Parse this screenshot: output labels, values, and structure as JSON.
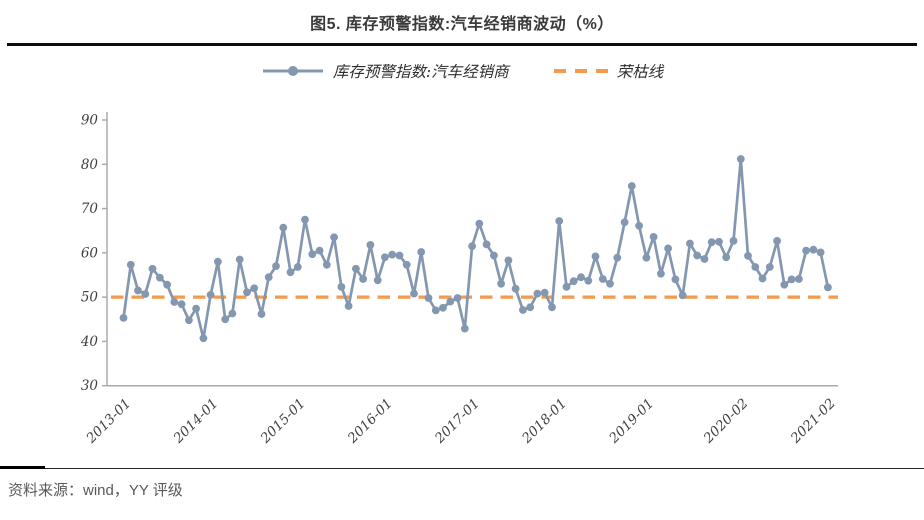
{
  "title": "图5. 库存预警指数:汽车经销商波动（%）",
  "legend": {
    "series_label": "库存预警指数:汽车经销商",
    "breakeven_label": "荣枯线"
  },
  "source": "资料来源：wind，YY 评级",
  "colors": {
    "series": "#8497B0",
    "breakeven": "#F49A4E",
    "axis": "#ABABAB",
    "tick_text": "#404040",
    "title_text": "#3a3a3a"
  },
  "chart_data": {
    "type": "line",
    "title": "图5. 库存预警指数:汽车经销商波动（%）",
    "series_name": "库存预警指数:汽车经销商",
    "breakeven_name": "荣枯线",
    "breakeven_value": 50,
    "ylim": [
      30,
      90
    ],
    "yticks": [
      90,
      80,
      70,
      60,
      50,
      40,
      30
    ],
    "grid": false,
    "legend_position": "top",
    "x_tick_labels": [
      "2013-01",
      "2014-01",
      "2015-01",
      "2016-01",
      "2017-01",
      "2018-01",
      "2019-01",
      "2020-02",
      "2021-02"
    ],
    "x_tick_indexes": [
      0,
      12,
      24,
      36,
      48,
      60,
      72,
      85,
      97
    ],
    "x": [
      "2013-01",
      "2013-02",
      "2013-03",
      "2013-04",
      "2013-05",
      "2013-06",
      "2013-07",
      "2013-08",
      "2013-09",
      "2013-10",
      "2013-11",
      "2013-12",
      "2014-01",
      "2014-02",
      "2014-03",
      "2014-04",
      "2014-05",
      "2014-06",
      "2014-07",
      "2014-08",
      "2014-09",
      "2014-10",
      "2014-11",
      "2014-12",
      "2015-01",
      "2015-02",
      "2015-03",
      "2015-04",
      "2015-05",
      "2015-06",
      "2015-07",
      "2015-08",
      "2015-09",
      "2015-10",
      "2015-11",
      "2015-12",
      "2016-01",
      "2016-02",
      "2016-03",
      "2016-04",
      "2016-05",
      "2016-06",
      "2016-07",
      "2016-08",
      "2016-09",
      "2016-10",
      "2016-11",
      "2016-12",
      "2017-01",
      "2017-02",
      "2017-03",
      "2017-04",
      "2017-05",
      "2017-06",
      "2017-07",
      "2017-08",
      "2017-09",
      "2017-10",
      "2017-11",
      "2017-12",
      "2018-01",
      "2018-02",
      "2018-03",
      "2018-04",
      "2018-05",
      "2018-06",
      "2018-07",
      "2018-08",
      "2018-09",
      "2018-10",
      "2018-11",
      "2018-12",
      "2019-01",
      "2019-02",
      "2019-03",
      "2019-04",
      "2019-05",
      "2019-06",
      "2019-07",
      "2019-08",
      "2019-09",
      "2019-10",
      "2019-11",
      "2019-12",
      "2020-01",
      "2020-02",
      "2020-03",
      "2020-04",
      "2020-05",
      "2020-06",
      "2020-07",
      "2020-08",
      "2020-09",
      "2020-10",
      "2020-11",
      "2020-12",
      "2021-01",
      "2021-02"
    ],
    "values": [
      45.3,
      57.3,
      51.5,
      50.7,
      56.4,
      54.4,
      52.8,
      48.9,
      48.4,
      44.8,
      47.4,
      40.7,
      50.5,
      58.0,
      45.0,
      46.3,
      58.5,
      51.1,
      52.0,
      46.2,
      54.5,
      57.0,
      65.7,
      55.6,
      56.8,
      67.5,
      59.7,
      60.5,
      57.3,
      63.5,
      52.3,
      48.0,
      56.4,
      54.1,
      61.8,
      53.8,
      59.0,
      59.6,
      59.4,
      57.3,
      50.8,
      60.2,
      49.8,
      47.0,
      47.6,
      49.0,
      49.8,
      42.9,
      61.5,
      66.6,
      61.9,
      59.4,
      53.0,
      58.3,
      51.9,
      47.1,
      47.7,
      50.8,
      51.0,
      47.7,
      67.2,
      52.3,
      53.6,
      54.5,
      53.7,
      59.2,
      54.1,
      53.0,
      58.9,
      66.9,
      75.1,
      66.1,
      58.9,
      63.6,
      55.3,
      61.0,
      54.0,
      50.4,
      62.1,
      59.4,
      58.6,
      62.4,
      62.5,
      59.0,
      62.7,
      81.2,
      59.3,
      56.8,
      54.2,
      56.8,
      62.7,
      52.8,
      54.0,
      54.1,
      60.5,
      60.7,
      60.1,
      52.2
    ]
  }
}
